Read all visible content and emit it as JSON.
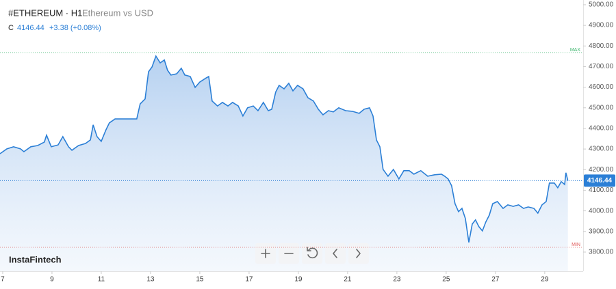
{
  "chart_data": {
    "type": "area",
    "title": "#ETHEREUM · H1",
    "subtitle": "Ethereum vs USD",
    "close_prefix": "C",
    "change": "+3.38 (+0.08%)",
    "brand": "InstaFintech",
    "color": "#2b7fd6",
    "x": [
      6.89,
      7.17,
      7.44,
      7.72,
      7.86,
      8.14,
      8.42,
      8.69,
      8.78,
      8.97,
      9.25,
      9.44,
      9.67,
      9.81,
      10.08,
      10.36,
      10.56,
      10.67,
      10.83,
      11.0,
      11.19,
      11.33,
      11.56,
      11.75,
      12.03,
      12.44,
      12.58,
      12.78,
      12.92,
      13.06,
      13.22,
      13.39,
      13.56,
      13.69,
      13.83,
      14.06,
      14.25,
      14.39,
      14.61,
      14.81,
      15.0,
      15.22,
      15.36,
      15.5,
      15.72,
      15.92,
      16.14,
      16.33,
      16.56,
      16.75,
      16.94,
      17.17,
      17.36,
      17.58,
      17.78,
      17.92,
      18.08,
      18.22,
      18.42,
      18.61,
      18.78,
      18.97,
      19.19,
      19.39,
      19.61,
      19.81,
      20.0,
      20.22,
      20.42,
      20.64,
      20.92,
      21.19,
      21.47,
      21.67,
      21.89,
      22.03,
      22.17,
      22.31,
      22.44,
      22.64,
      22.86,
      23.08,
      23.28,
      23.5,
      23.69,
      23.97,
      24.25,
      24.53,
      24.81,
      24.94,
      25.08,
      25.22,
      25.36,
      25.5,
      25.64,
      25.78,
      25.92,
      26.06,
      26.19,
      26.33,
      26.47,
      26.61,
      26.75,
      26.89,
      27.08,
      27.31,
      27.5,
      27.72,
      27.94,
      28.14,
      28.33,
      28.56,
      28.72,
      28.89,
      29.06,
      29.19,
      29.39,
      29.53,
      29.67,
      29.81,
      29.86,
      29.94
    ],
    "values": [
      4277,
      4301,
      4311,
      4301,
      4287,
      4311,
      4317,
      4334,
      4367,
      4311,
      4320,
      4360,
      4311,
      4294,
      4317,
      4327,
      4344,
      4417,
      4360,
      4337,
      4393,
      4427,
      4446,
      4446,
      4446,
      4446,
      4519,
      4543,
      4675,
      4698,
      4751,
      4718,
      4732,
      4682,
      4659,
      4665,
      4692,
      4659,
      4652,
      4599,
      4625,
      4642,
      4652,
      4533,
      4509,
      4526,
      4509,
      4526,
      4509,
      4460,
      4500,
      4509,
      4486,
      4526,
      4486,
      4493,
      4576,
      4609,
      4592,
      4619,
      4582,
      4609,
      4592,
      4549,
      4533,
      4493,
      4466,
      4486,
      4480,
      4500,
      4486,
      4483,
      4473,
      4493,
      4500,
      4460,
      4344,
      4311,
      4201,
      4168,
      4201,
      4155,
      4195,
      4195,
      4178,
      4195,
      4168,
      4175,
      4178,
      4168,
      4155,
      4122,
      4035,
      3996,
      4012,
      3963,
      3847,
      3936,
      3956,
      3923,
      3903,
      3946,
      3979,
      4035,
      4045,
      4012,
      4029,
      4022,
      4029,
      4012,
      4019,
      4012,
      3989,
      4029,
      4045,
      4135,
      4135,
      4112,
      4142,
      4128,
      4185,
      4146.44
    ],
    "xlim": [
      6.89,
      30.56
    ],
    "xticks": [
      7,
      9,
      11,
      13,
      15,
      17,
      19,
      21,
      23,
      25,
      27,
      29
    ],
    "ylim": [
      3707,
      5023
    ],
    "yticks": [
      {
        "value": 3800,
        "label": "3800.00"
      },
      {
        "value": 3900,
        "label": "3900.00"
      },
      {
        "value": 4000,
        "label": "4000.00"
      },
      {
        "value": 4100,
        "label": "4100.00"
      },
      {
        "value": 4200,
        "label": "4200.00"
      },
      {
        "value": 4300,
        "label": "4300.00"
      },
      {
        "value": 4400,
        "label": "4400.00"
      },
      {
        "value": 4500,
        "label": "4500.00"
      },
      {
        "value": 4600,
        "label": "4600.00"
      },
      {
        "value": 4700,
        "label": "4700.00"
      },
      {
        "value": 4800,
        "label": "4800.00"
      },
      {
        "value": 4900,
        "label": "4900.00"
      },
      {
        "value": 5000,
        "label": "5000.00"
      }
    ],
    "levels": [
      {
        "label": "MAX",
        "value": 4768,
        "color": "#3bb56c"
      },
      {
        "label": "MIN",
        "value": 3823,
        "color": "#e05a5a"
      }
    ]
  }
}
